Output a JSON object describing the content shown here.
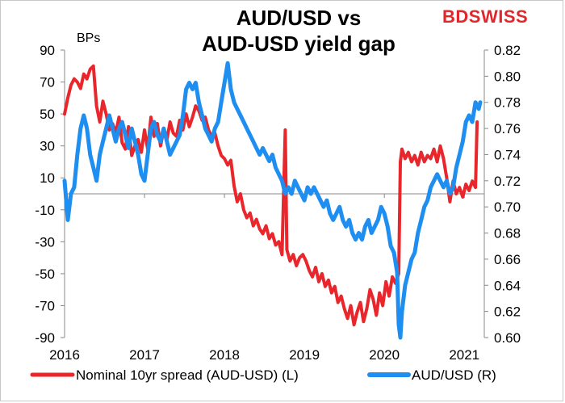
{
  "title_line1": "AUD/USD vs",
  "title_line2": "AUD-USD yield gap",
  "logo_text": "BDSWISS",
  "chart_data": {
    "type": "line",
    "left_unit": "BPs",
    "left_axis": {
      "ticks": [
        90,
        70,
        50,
        30,
        10,
        -10,
        -30,
        -50,
        -70,
        -90
      ],
      "range": [
        -90,
        90
      ]
    },
    "right_axis": {
      "ticks": [
        "0.82",
        "0.80",
        "0.78",
        "0.76",
        "0.74",
        "0.72",
        "0.70",
        "0.68",
        "0.66",
        "0.64",
        "0.62",
        "0.60"
      ],
      "range": [
        0.6,
        0.82
      ]
    },
    "x_axis": {
      "ticks": [
        "2016",
        "2017",
        "2018",
        "2019",
        "2020",
        "2021"
      ],
      "range": [
        2016.0,
        2021.25
      ]
    },
    "legend_position": "bottom",
    "series": [
      {
        "name": "Nominal 10yr spread (AUD-USD) (L)",
        "axis": "left",
        "color": "#e8262b",
        "points": [
          [
            2016.0,
            50
          ],
          [
            2016.04,
            60
          ],
          [
            2016.08,
            68
          ],
          [
            2016.12,
            72
          ],
          [
            2016.16,
            70
          ],
          [
            2016.2,
            66
          ],
          [
            2016.24,
            75
          ],
          [
            2016.28,
            72
          ],
          [
            2016.32,
            78
          ],
          [
            2016.36,
            80
          ],
          [
            2016.4,
            55
          ],
          [
            2016.44,
            45
          ],
          [
            2016.48,
            58
          ],
          [
            2016.52,
            50
          ],
          [
            2016.56,
            40
          ],
          [
            2016.6,
            44
          ],
          [
            2016.64,
            38
          ],
          [
            2016.68,
            48
          ],
          [
            2016.72,
            32
          ],
          [
            2016.76,
            28
          ],
          [
            2016.8,
            42
          ],
          [
            2016.84,
            24
          ],
          [
            2016.88,
            30
          ],
          [
            2016.92,
            34
          ],
          [
            2016.96,
            26
          ],
          [
            2017.0,
            40
          ],
          [
            2017.04,
            28
          ],
          [
            2017.08,
            48
          ],
          [
            2017.12,
            36
          ],
          [
            2017.16,
            44
          ],
          [
            2017.2,
            30
          ],
          [
            2017.24,
            40
          ],
          [
            2017.28,
            34
          ],
          [
            2017.32,
            45
          ],
          [
            2017.36,
            38
          ],
          [
            2017.4,
            36
          ],
          [
            2017.44,
            46
          ],
          [
            2017.48,
            40
          ],
          [
            2017.52,
            50
          ],
          [
            2017.56,
            42
          ],
          [
            2017.6,
            48
          ],
          [
            2017.64,
            55
          ],
          [
            2017.68,
            52
          ],
          [
            2017.72,
            46
          ],
          [
            2017.76,
            48
          ],
          [
            2017.8,
            40
          ],
          [
            2017.84,
            36
          ],
          [
            2017.88,
            38
          ],
          [
            2017.92,
            30
          ],
          [
            2017.96,
            24
          ],
          [
            2018.0,
            22
          ],
          [
            2018.04,
            18
          ],
          [
            2018.08,
            21
          ],
          [
            2018.12,
            5
          ],
          [
            2018.16,
            -5
          ],
          [
            2018.2,
            0
          ],
          [
            2018.24,
            -10
          ],
          [
            2018.28,
            -15
          ],
          [
            2018.32,
            -12
          ],
          [
            2018.36,
            -20
          ],
          [
            2018.4,
            -16
          ],
          [
            2018.44,
            -22
          ],
          [
            2018.48,
            -25
          ],
          [
            2018.52,
            -20
          ],
          [
            2018.56,
            -28
          ],
          [
            2018.6,
            -25
          ],
          [
            2018.64,
            -32
          ],
          [
            2018.68,
            -30
          ],
          [
            2018.72,
            -38
          ],
          [
            2018.76,
            40
          ],
          [
            2018.78,
            -35
          ],
          [
            2018.82,
            -42
          ],
          [
            2018.86,
            -38
          ],
          [
            2018.9,
            -45
          ],
          [
            2018.94,
            -40
          ],
          [
            2018.98,
            -38
          ],
          [
            2019.02,
            -42
          ],
          [
            2019.06,
            -48
          ],
          [
            2019.1,
            -52
          ],
          [
            2019.14,
            -46
          ],
          [
            2019.18,
            -55
          ],
          [
            2019.22,
            -50
          ],
          [
            2019.26,
            -58
          ],
          [
            2019.3,
            -54
          ],
          [
            2019.34,
            -62
          ],
          [
            2019.38,
            -58
          ],
          [
            2019.42,
            -68
          ],
          [
            2019.46,
            -64
          ],
          [
            2019.5,
            -72
          ],
          [
            2019.54,
            -78
          ],
          [
            2019.58,
            -70
          ],
          [
            2019.62,
            -82
          ],
          [
            2019.66,
            -74
          ],
          [
            2019.7,
            -68
          ],
          [
            2019.74,
            -80
          ],
          [
            2019.78,
            -72
          ],
          [
            2019.82,
            -60
          ],
          [
            2019.86,
            -66
          ],
          [
            2019.9,
            -76
          ],
          [
            2019.94,
            -62
          ],
          [
            2019.98,
            -70
          ],
          [
            2020.02,
            -55
          ],
          [
            2020.06,
            -64
          ],
          [
            2020.1,
            -52
          ],
          [
            2020.14,
            -56
          ],
          [
            2020.18,
            -50
          ],
          [
            2020.2,
            20
          ],
          [
            2020.22,
            28
          ],
          [
            2020.26,
            22
          ],
          [
            2020.3,
            26
          ],
          [
            2020.34,
            20
          ],
          [
            2020.38,
            24
          ],
          [
            2020.42,
            18
          ],
          [
            2020.46,
            26
          ],
          [
            2020.5,
            20
          ],
          [
            2020.54,
            24
          ],
          [
            2020.58,
            22
          ],
          [
            2020.62,
            28
          ],
          [
            2020.66,
            20
          ],
          [
            2020.7,
            30
          ],
          [
            2020.74,
            22
          ],
          [
            2020.78,
            10
          ],
          [
            2020.82,
            -5
          ],
          [
            2020.86,
            8
          ],
          [
            2020.9,
            0
          ],
          [
            2020.94,
            4
          ],
          [
            2020.98,
            -2
          ],
          [
            2021.02,
            6
          ],
          [
            2021.06,
            2
          ],
          [
            2021.1,
            8
          ],
          [
            2021.14,
            4
          ],
          [
            2021.16,
            45
          ]
        ]
      },
      {
        "name": "AUD/USD (R)",
        "axis": "right",
        "color": "#1f8ef1",
        "points": [
          [
            2016.0,
            0.72
          ],
          [
            2016.04,
            0.69
          ],
          [
            2016.08,
            0.71
          ],
          [
            2016.12,
            0.715
          ],
          [
            2016.16,
            0.74
          ],
          [
            2016.2,
            0.76
          ],
          [
            2016.24,
            0.77
          ],
          [
            2016.28,
            0.76
          ],
          [
            2016.32,
            0.74
          ],
          [
            2016.36,
            0.73
          ],
          [
            2016.4,
            0.72
          ],
          [
            2016.44,
            0.74
          ],
          [
            2016.48,
            0.75
          ],
          [
            2016.52,
            0.76
          ],
          [
            2016.56,
            0.77
          ],
          [
            2016.6,
            0.76
          ],
          [
            2016.64,
            0.75
          ],
          [
            2016.68,
            0.76
          ],
          [
            2016.72,
            0.765
          ],
          [
            2016.76,
            0.755
          ],
          [
            2016.8,
            0.745
          ],
          [
            2016.84,
            0.76
          ],
          [
            2016.88,
            0.75
          ],
          [
            2016.92,
            0.74
          ],
          [
            2016.96,
            0.725
          ],
          [
            2017.0,
            0.72
          ],
          [
            2017.04,
            0.74
          ],
          [
            2017.08,
            0.76
          ],
          [
            2017.12,
            0.765
          ],
          [
            2017.16,
            0.755
          ],
          [
            2017.2,
            0.75
          ],
          [
            2017.24,
            0.76
          ],
          [
            2017.28,
            0.75
          ],
          [
            2017.32,
            0.74
          ],
          [
            2017.36,
            0.745
          ],
          [
            2017.4,
            0.75
          ],
          [
            2017.44,
            0.755
          ],
          [
            2017.48,
            0.77
          ],
          [
            2017.52,
            0.79
          ],
          [
            2017.56,
            0.795
          ],
          [
            2017.6,
            0.79
          ],
          [
            2017.64,
            0.795
          ],
          [
            2017.68,
            0.78
          ],
          [
            2017.72,
            0.77
          ],
          [
            2017.76,
            0.76
          ],
          [
            2017.8,
            0.755
          ],
          [
            2017.84,
            0.75
          ],
          [
            2017.88,
            0.76
          ],
          [
            2017.92,
            0.765
          ],
          [
            2017.96,
            0.78
          ],
          [
            2018.0,
            0.795
          ],
          [
            2018.04,
            0.81
          ],
          [
            2018.08,
            0.79
          ],
          [
            2018.12,
            0.78
          ],
          [
            2018.16,
            0.775
          ],
          [
            2018.2,
            0.77
          ],
          [
            2018.24,
            0.765
          ],
          [
            2018.28,
            0.76
          ],
          [
            2018.32,
            0.755
          ],
          [
            2018.36,
            0.75
          ],
          [
            2018.4,
            0.745
          ],
          [
            2018.44,
            0.74
          ],
          [
            2018.48,
            0.745
          ],
          [
            2018.52,
            0.74
          ],
          [
            2018.56,
            0.735
          ],
          [
            2018.6,
            0.74
          ],
          [
            2018.64,
            0.73
          ],
          [
            2018.68,
            0.725
          ],
          [
            2018.72,
            0.72
          ],
          [
            2018.76,
            0.71
          ],
          [
            2018.8,
            0.715
          ],
          [
            2018.84,
            0.71
          ],
          [
            2018.88,
            0.72
          ],
          [
            2018.92,
            0.715
          ],
          [
            2018.96,
            0.71
          ],
          [
            2019.0,
            0.705
          ],
          [
            2019.04,
            0.715
          ],
          [
            2019.08,
            0.71
          ],
          [
            2019.12,
            0.715
          ],
          [
            2019.16,
            0.71
          ],
          [
            2019.2,
            0.705
          ],
          [
            2019.24,
            0.7
          ],
          [
            2019.28,
            0.705
          ],
          [
            2019.32,
            0.695
          ],
          [
            2019.36,
            0.69
          ],
          [
            2019.4,
            0.695
          ],
          [
            2019.44,
            0.7
          ],
          [
            2019.48,
            0.69
          ],
          [
            2019.52,
            0.685
          ],
          [
            2019.56,
            0.69
          ],
          [
            2019.6,
            0.68
          ],
          [
            2019.64,
            0.675
          ],
          [
            2019.68,
            0.68
          ],
          [
            2019.72,
            0.675
          ],
          [
            2019.76,
            0.685
          ],
          [
            2019.8,
            0.69
          ],
          [
            2019.84,
            0.68
          ],
          [
            2019.88,
            0.685
          ],
          [
            2019.92,
            0.69
          ],
          [
            2019.96,
            0.7
          ],
          [
            2020.0,
            0.695
          ],
          [
            2020.04,
            0.685
          ],
          [
            2020.08,
            0.67
          ],
          [
            2020.12,
            0.665
          ],
          [
            2020.16,
            0.65
          ],
          [
            2020.18,
            0.61
          ],
          [
            2020.2,
            0.58
          ],
          [
            2020.22,
            0.62
          ],
          [
            2020.26,
            0.64
          ],
          [
            2020.3,
            0.65
          ],
          [
            2020.34,
            0.66
          ],
          [
            2020.38,
            0.665
          ],
          [
            2020.42,
            0.68
          ],
          [
            2020.46,
            0.69
          ],
          [
            2020.5,
            0.7
          ],
          [
            2020.54,
            0.705
          ],
          [
            2020.58,
            0.715
          ],
          [
            2020.62,
            0.72
          ],
          [
            2020.66,
            0.725
          ],
          [
            2020.7,
            0.72
          ],
          [
            2020.74,
            0.715
          ],
          [
            2020.78,
            0.72
          ],
          [
            2020.82,
            0.71
          ],
          [
            2020.86,
            0.715
          ],
          [
            2020.9,
            0.73
          ],
          [
            2020.94,
            0.74
          ],
          [
            2020.98,
            0.75
          ],
          [
            2021.02,
            0.765
          ],
          [
            2021.06,
            0.77
          ],
          [
            2021.1,
            0.765
          ],
          [
            2021.14,
            0.78
          ],
          [
            2021.18,
            0.775
          ],
          [
            2021.2,
            0.78
          ]
        ]
      }
    ]
  }
}
